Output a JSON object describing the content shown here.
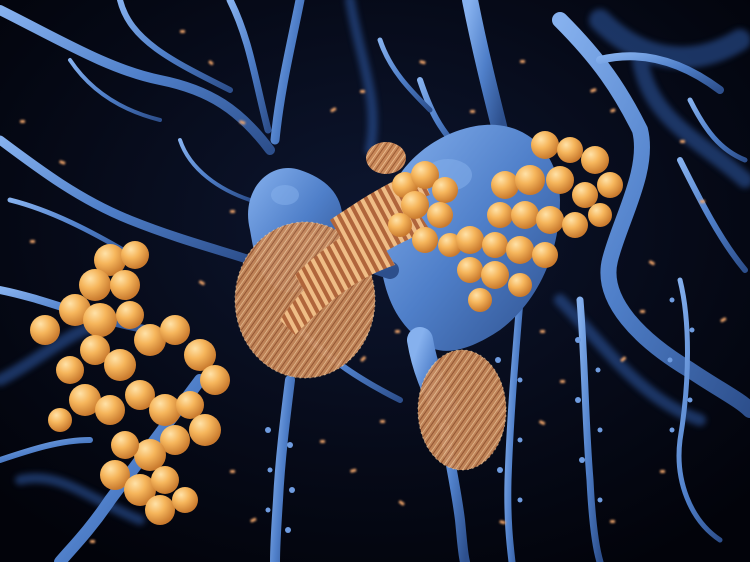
{
  "image": {
    "subject": "neurons-with-amyloid-plaques",
    "colors": {
      "background": "#05070f",
      "neuron": "#4f7fc9",
      "neuron_highlight": "#7aa6e6",
      "neuron_shadow": "#2b4f8f",
      "amyloid": "#f4b45a",
      "amyloid_highlight": "#ffd48a",
      "fibril_tangle": "#e0a36a",
      "fibril_stripe_dark": "#a55a36",
      "fibril_stripe_light": "#f1c08a",
      "fragments": "#f0a56a"
    }
  }
}
